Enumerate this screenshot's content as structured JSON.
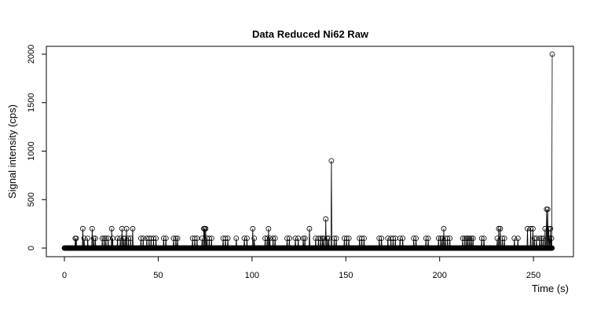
{
  "chart_data": {
    "type": "scatter",
    "title": "Data Reduced Ni62 Raw",
    "xlabel": "Time (s)",
    "ylabel": "Signal intensity (cps)",
    "xlim": [
      0,
      270
    ],
    "ylim": [
      0,
      2000
    ],
    "xticks": [
      0,
      50,
      100,
      150,
      200,
      250
    ],
    "yticks": [
      0,
      500,
      1000,
      1500,
      2000
    ],
    "grid": false,
    "legend": "none",
    "sampling_interval_s": 0.262,
    "series": [
      {
        "style": "points-and-lines",
        "baseline": 0,
        "x": [
          5.8,
          6.3,
          9.8,
          10.5,
          12.4,
          14.8,
          15.6,
          16.5,
          20.2,
          21.2,
          22.1,
          23.3,
          25.2,
          25.7,
          28.3,
          29.8,
          30.7,
          31.5,
          32.3,
          33.1,
          34.1,
          35.3,
          36.4,
          40.8,
          42.0,
          43.9,
          45.1,
          46.2,
          47.5,
          48.8,
          52.9,
          54.1,
          58.2,
          59.4,
          60.3,
          68.3,
          69.5,
          70.7,
          73.4,
          74.3,
          74.8,
          75.3,
          76.0,
          77.2,
          78.4,
          84.6,
          85.8,
          87.1,
          91.6,
          95.9,
          97.3,
          100.4,
          101.2,
          107.0,
          108.1,
          108.8,
          109.5,
          111.2,
          112.3,
          118.7,
          119.9,
          123.1,
          124.6,
          127.3,
          128.2,
          130.6,
          133.9,
          135.4,
          136.5,
          137.5,
          138.2,
          139.3,
          140.1,
          140.9,
          142.3,
          143.8,
          144.9,
          149.2,
          150.4,
          151.6,
          157.3,
          158.5,
          159.7,
          167.8,
          169.0,
          172.4,
          174.0,
          175.2,
          176.4,
          178.9,
          180.3,
          186.2,
          187.4,
          192.7,
          193.9,
          199.4,
          200.6,
          201.4,
          202.2,
          203.1,
          204.2,
          205.4,
          212.3,
          213.4,
          214.3,
          215.1,
          216.0,
          216.9,
          217.8,
          222.4,
          223.6,
          230.7,
          231.5,
          232.3,
          233.4,
          234.5,
          239.8,
          241.7,
          246.8,
          248.5,
          249.7,
          250.5,
          251.6,
          253.3,
          254.3,
          255.2,
          256.2,
          257.0,
          257.6,
          258.1,
          258.6,
          259.1,
          259.6,
          260.0
        ],
        "y": [
          100,
          100,
          200,
          100,
          100,
          200,
          100,
          100,
          100,
          100,
          100,
          100,
          200,
          100,
          100,
          100,
          200,
          100,
          100,
          200,
          100,
          100,
          200,
          100,
          100,
          100,
          100,
          100,
          100,
          100,
          100,
          100,
          100,
          100,
          100,
          100,
          100,
          100,
          100,
          200,
          200,
          200,
          100,
          100,
          100,
          100,
          100,
          100,
          100,
          100,
          100,
          200,
          100,
          100,
          100,
          200,
          100,
          100,
          100,
          100,
          100,
          100,
          100,
          100,
          100,
          200,
          100,
          100,
          100,
          100,
          100,
          300,
          100,
          100,
          900,
          100,
          100,
          100,
          100,
          100,
          100,
          100,
          100,
          100,
          100,
          100,
          100,
          100,
          100,
          100,
          100,
          100,
          100,
          100,
          100,
          100,
          100,
          100,
          200,
          100,
          100,
          100,
          100,
          100,
          100,
          100,
          100,
          100,
          100,
          100,
          100,
          100,
          200,
          200,
          100,
          100,
          100,
          100,
          200,
          200,
          200,
          100,
          100,
          100,
          100,
          100,
          200,
          400,
          400,
          200,
          100,
          200,
          100,
          2000
        ]
      }
    ]
  }
}
